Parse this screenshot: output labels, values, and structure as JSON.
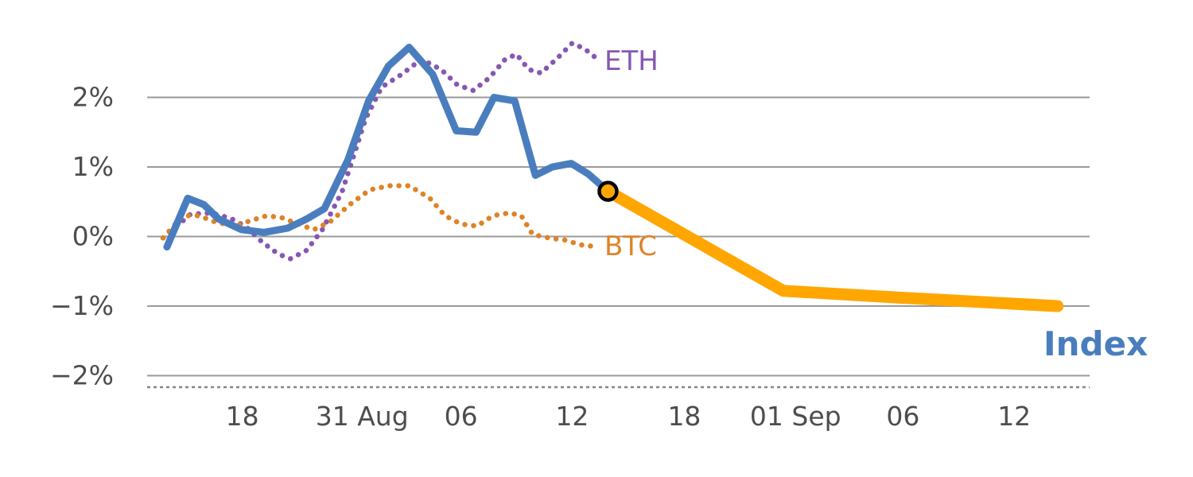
{
  "chart_data": {
    "type": "line",
    "title": "",
    "xlabel": "",
    "ylabel": "",
    "grid": "horizontal",
    "legend_position": "inline-labels",
    "xlim": [
      0,
      100
    ],
    "ylim": [
      -2.2,
      3.0
    ],
    "yticks": [
      {
        "v": 2,
        "label": "2%"
      },
      {
        "v": 1,
        "label": "1%"
      },
      {
        "v": 0,
        "label": "0%"
      },
      {
        "v": -1,
        "label": "−1%"
      },
      {
        "v": -2,
        "label": "−2%"
      }
    ],
    "xticks": [
      {
        "u": 10.1,
        "label": "18"
      },
      {
        "u": 22.8,
        "label": "31 Aug"
      },
      {
        "u": 33.3,
        "label": "06"
      },
      {
        "u": 45.1,
        "label": "12"
      },
      {
        "u": 57.0,
        "label": "18"
      },
      {
        "u": 68.8,
        "label": "01 Sep"
      },
      {
        "u": 80.2,
        "label": "06"
      },
      {
        "u": 92.0,
        "label": "12"
      }
    ],
    "labels": {
      "eth": "ETH",
      "btc": "BTC",
      "index": "Index"
    },
    "colors": {
      "index_blue": "#4A7DBE",
      "eth_purple": "#8757B2",
      "btc_orange": "#DE8327",
      "projection_orange": "#FFA600",
      "grid_gray": "#9a9a9a",
      "axis_dash_gray": "#858585",
      "tick_text_gray": "#4d4d4d",
      "marker_ring": "#000000"
    },
    "series": [
      {
        "name": "ETH",
        "style": "dotted",
        "color": "#8757B2",
        "width": 6.5,
        "points": [
          [
            1.7,
            -0.02
          ],
          [
            4.6,
            0.32
          ],
          [
            6.8,
            0.34
          ],
          [
            8.9,
            0.26
          ],
          [
            10.5,
            0.14
          ],
          [
            12.2,
            -0.08
          ],
          [
            13.9,
            -0.25
          ],
          [
            15.2,
            -0.32
          ],
          [
            16.9,
            -0.2
          ],
          [
            18.6,
            0.1
          ],
          [
            20.7,
            0.65
          ],
          [
            23.2,
            1.7
          ],
          [
            24.9,
            2.15
          ],
          [
            27.0,
            2.33
          ],
          [
            29.1,
            2.55
          ],
          [
            31.2,
            2.4
          ],
          [
            32.9,
            2.18
          ],
          [
            34.6,
            2.1
          ],
          [
            36.3,
            2.28
          ],
          [
            38.0,
            2.55
          ],
          [
            39.2,
            2.62
          ],
          [
            40.5,
            2.4
          ],
          [
            41.8,
            2.35
          ],
          [
            43.5,
            2.56
          ],
          [
            45.1,
            2.78
          ],
          [
            46.4,
            2.7
          ],
          [
            47.5,
            2.58
          ]
        ]
      },
      {
        "name": "BTC",
        "style": "dotted",
        "color": "#DE8327",
        "width": 6.5,
        "points": [
          [
            1.7,
            -0.02
          ],
          [
            3.8,
            0.3
          ],
          [
            5.5,
            0.3
          ],
          [
            7.2,
            0.21
          ],
          [
            9.3,
            0.15
          ],
          [
            11.0,
            0.23
          ],
          [
            12.7,
            0.3
          ],
          [
            14.3,
            0.27
          ],
          [
            16.0,
            0.18
          ],
          [
            17.7,
            0.1
          ],
          [
            19.4,
            0.21
          ],
          [
            21.5,
            0.46
          ],
          [
            23.6,
            0.67
          ],
          [
            25.7,
            0.73
          ],
          [
            27.8,
            0.73
          ],
          [
            30.0,
            0.55
          ],
          [
            31.6,
            0.3
          ],
          [
            33.3,
            0.18
          ],
          [
            35.0,
            0.15
          ],
          [
            36.7,
            0.3
          ],
          [
            38.4,
            0.34
          ],
          [
            39.7,
            0.3
          ],
          [
            40.9,
            0.03
          ],
          [
            42.6,
            -0.02
          ],
          [
            44.3,
            -0.05
          ],
          [
            46.0,
            -0.12
          ],
          [
            47.3,
            -0.14
          ]
        ]
      },
      {
        "name": "Index projection",
        "style": "solid",
        "color": "#FFA600",
        "width": 15,
        "points": [
          [
            48.9,
            0.65
          ],
          [
            67.5,
            -0.78
          ],
          [
            80.0,
            -0.88
          ],
          [
            96.6,
            -1.0
          ]
        ]
      },
      {
        "name": "Index",
        "style": "solid",
        "color": "#4A7DBE",
        "width": 9,
        "points": [
          [
            2.1,
            -0.15
          ],
          [
            4.3,
            0.55
          ],
          [
            6.0,
            0.46
          ],
          [
            7.6,
            0.25
          ],
          [
            10.0,
            0.1
          ],
          [
            12.4,
            0.06
          ],
          [
            14.9,
            0.12
          ],
          [
            16.9,
            0.25
          ],
          [
            18.8,
            0.4
          ],
          [
            21.3,
            1.1
          ],
          [
            23.5,
            1.95
          ],
          [
            25.6,
            2.45
          ],
          [
            27.8,
            2.72
          ],
          [
            30.3,
            2.33
          ],
          [
            32.8,
            1.52
          ],
          [
            34.9,
            1.5
          ],
          [
            36.8,
            2.0
          ],
          [
            39.0,
            1.95
          ],
          [
            41.2,
            0.88
          ],
          [
            43.0,
            1.0
          ],
          [
            45.0,
            1.05
          ],
          [
            46.8,
            0.9
          ],
          [
            48.9,
            0.65
          ]
        ]
      }
    ],
    "marker": {
      "x": 48.9,
      "y": 0.65,
      "r": 11,
      "fill": "#FFA600",
      "ring": "#000000",
      "ring_width": 4.5
    }
  }
}
